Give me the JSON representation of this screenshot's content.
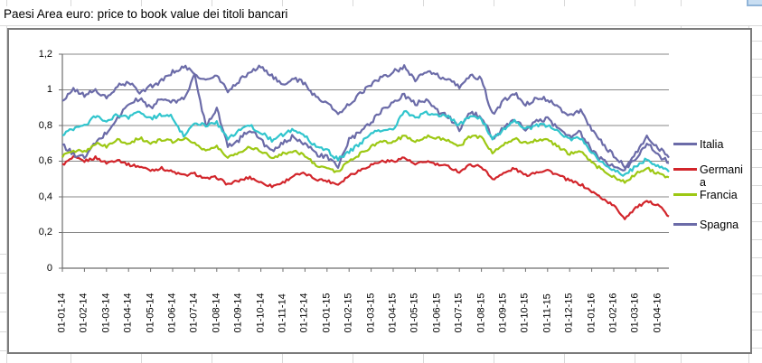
{
  "sheet": {
    "title": "Paesi Area euro: price to book value dei titoli bancari"
  },
  "chart_data": {
    "type": "line",
    "title": "Paesi Area euro: price to book value dei titoli bancari",
    "xlabel": "",
    "ylabel": "",
    "ylim": [
      0,
      1.2
    ],
    "y_tick_labels": [
      "1,2",
      "1",
      "0,8",
      "0,6",
      "0,4",
      "0,2",
      "0"
    ],
    "grid": "horizontal",
    "legend_position": "right",
    "x_tick_labels": [
      "01-01-14",
      "01-02-14",
      "01-03-14",
      "01-04-14",
      "01-05-14",
      "01-06-14",
      "01-07-14",
      "01-08-14",
      "01-09-14",
      "01-10-14",
      "01-11-14",
      "01-12-14",
      "01-01-15",
      "01-02-15",
      "01-03-15",
      "01-04-15",
      "01-05-15",
      "01-06-15",
      "01-07-15",
      "01-08-15",
      "01-09-15",
      "01-10-15",
      "01-11-15",
      "01-12-15",
      "01-01-16",
      "01-02-16",
      "01-03-16",
      "01-04-16"
    ],
    "samples_per_month": 2,
    "legend_entries": [
      {
        "label": "Italia",
        "color": "#6b6ba8"
      },
      {
        "label": "Germania",
        "color": "#d2252b"
      },
      {
        "label": "Francia",
        "color": "#9dc814"
      },
      {
        "label": "Spagna",
        "color": "#6b6ba8"
      }
    ],
    "series": [
      {
        "name": "Germania",
        "color": "#d2252b",
        "legend_visible": true,
        "jitter": 0.008,
        "values": [
          0.58,
          0.62,
          0.6,
          0.62,
          0.59,
          0.61,
          0.58,
          0.57,
          0.55,
          0.56,
          0.54,
          0.52,
          0.53,
          0.5,
          0.51,
          0.47,
          0.49,
          0.51,
          0.48,
          0.46,
          0.48,
          0.52,
          0.53,
          0.5,
          0.49,
          0.47,
          0.52,
          0.55,
          0.58,
          0.6,
          0.6,
          0.62,
          0.58,
          0.6,
          0.58,
          0.57,
          0.54,
          0.58,
          0.57,
          0.5,
          0.53,
          0.56,
          0.52,
          0.54,
          0.55,
          0.52,
          0.49,
          0.47,
          0.43,
          0.39,
          0.35,
          0.28,
          0.34,
          0.37,
          0.36,
          0.29
        ]
      },
      {
        "name": "Italia",
        "color": "#6b6ba8",
        "legend_visible": true,
        "jitter": 0.014,
        "values": [
          0.69,
          0.64,
          0.62,
          0.7,
          0.76,
          0.84,
          0.92,
          0.95,
          0.9,
          0.95,
          0.93,
          0.95,
          1.08,
          0.8,
          0.9,
          0.68,
          0.72,
          0.78,
          0.72,
          0.65,
          0.7,
          0.74,
          0.7,
          0.64,
          0.62,
          0.57,
          0.72,
          0.76,
          0.82,
          0.89,
          0.93,
          0.97,
          0.92,
          0.95,
          0.88,
          0.85,
          0.78,
          0.87,
          0.85,
          0.73,
          0.78,
          0.83,
          0.78,
          0.82,
          0.84,
          0.78,
          0.74,
          0.76,
          0.66,
          0.6,
          0.57,
          0.55,
          0.62,
          0.7,
          0.64,
          0.59
        ]
      },
      {
        "name": "Spagna",
        "color": "#6b6ba8",
        "legend_visible": true,
        "jitter": 0.013,
        "values": [
          0.94,
          1.0,
          0.97,
          1.0,
          0.95,
          1.02,
          1.04,
          0.99,
          1.02,
          1.05,
          1.1,
          1.13,
          1.09,
          1.05,
          1.08,
          0.99,
          1.05,
          1.1,
          1.13,
          1.08,
          1.02,
          1.07,
          1.03,
          0.96,
          0.93,
          0.86,
          0.92,
          0.98,
          1.03,
          1.07,
          1.1,
          1.13,
          1.06,
          1.1,
          1.08,
          1.05,
          1.02,
          1.08,
          1.06,
          0.86,
          0.94,
          0.98,
          0.92,
          0.95,
          0.95,
          0.9,
          0.86,
          0.88,
          0.78,
          0.7,
          0.63,
          0.57,
          0.64,
          0.74,
          0.68,
          0.62
        ]
      },
      {
        "name": "Francia",
        "color": "#9dc814",
        "legend_visible": true,
        "jitter": 0.009,
        "values": [
          0.63,
          0.66,
          0.65,
          0.7,
          0.68,
          0.72,
          0.7,
          0.73,
          0.7,
          0.72,
          0.71,
          0.73,
          0.7,
          0.66,
          0.68,
          0.62,
          0.65,
          0.68,
          0.66,
          0.62,
          0.64,
          0.66,
          0.63,
          0.58,
          0.56,
          0.54,
          0.6,
          0.64,
          0.68,
          0.71,
          0.71,
          0.74,
          0.71,
          0.74,
          0.73,
          0.72,
          0.68,
          0.74,
          0.73,
          0.65,
          0.69,
          0.73,
          0.7,
          0.72,
          0.72,
          0.68,
          0.64,
          0.66,
          0.59,
          0.55,
          0.51,
          0.48,
          0.53,
          0.56,
          0.53,
          0.51
        ]
      },
      {
        "name": "",
        "color": "#31c5cd",
        "legend_visible": false,
        "jitter": 0.011,
        "values": [
          0.75,
          0.78,
          0.8,
          0.85,
          0.82,
          0.86,
          0.84,
          0.88,
          0.84,
          0.86,
          0.85,
          0.74,
          0.82,
          0.8,
          0.82,
          0.72,
          0.77,
          0.8,
          0.76,
          0.72,
          0.75,
          0.78,
          0.74,
          0.68,
          0.66,
          0.61,
          0.65,
          0.7,
          0.75,
          0.78,
          0.78,
          0.88,
          0.84,
          0.87,
          0.86,
          0.85,
          0.8,
          0.86,
          0.84,
          0.72,
          0.78,
          0.83,
          0.78,
          0.8,
          0.8,
          0.76,
          0.72,
          0.73,
          0.65,
          0.59,
          0.55,
          0.52,
          0.57,
          0.61,
          0.57,
          0.54
        ]
      }
    ]
  }
}
